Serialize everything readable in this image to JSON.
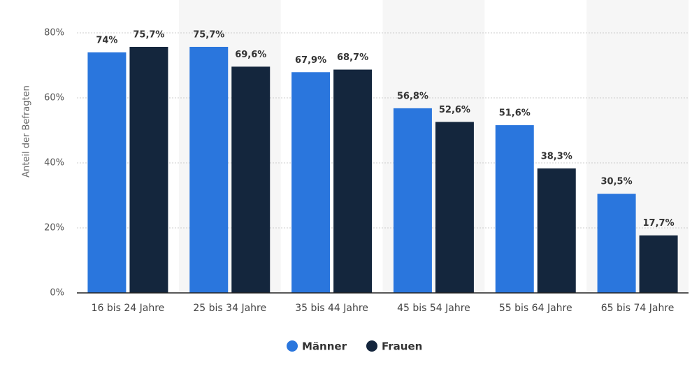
{
  "chart_data": {
    "type": "bar",
    "y_label": "Anteil der Befragten",
    "categories": [
      "16 bis 24 Jahre",
      "25 bis 34 Jahre",
      "35 bis 44 Jahre",
      "45 bis 54 Jahre",
      "55 bis 64 Jahre",
      "65 bis 74 Jahre"
    ],
    "series": [
      {
        "name": "Männer",
        "color": "#2a76dd",
        "values": [
          74,
          75.7,
          67.9,
          56.8,
          51.6,
          30.5
        ],
        "value_labels": [
          "74%",
          "75,7%",
          "67,9%",
          "56,8%",
          "51,6%",
          "30,5%"
        ]
      },
      {
        "name": "Frauen",
        "color": "#14263d",
        "values": [
          75.7,
          69.6,
          68.7,
          52.6,
          38.3,
          17.7
        ],
        "value_labels": [
          "75,7%",
          "69,6%",
          "68,7%",
          "52,6%",
          "38,3%",
          "17,7%"
        ]
      }
    ],
    "ylim": [
      0,
      80
    ],
    "yticks": [
      {
        "value": 0,
        "label": "0%"
      },
      {
        "value": 20,
        "label": "20%"
      },
      {
        "value": 40,
        "label": "40%"
      },
      {
        "value": 60,
        "label": "60%"
      },
      {
        "value": 80,
        "label": "80%"
      }
    ],
    "grid": true,
    "legend": "bottom"
  }
}
